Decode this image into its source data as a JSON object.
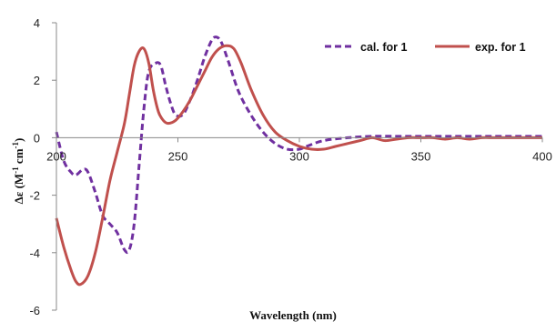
{
  "chart_data": {
    "type": "line",
    "title": "",
    "xlabel": "Wavelength (nm)",
    "ylabel": {
      "main": "Δε (M",
      "sup1": "-1",
      "mid": " cm",
      "sup2": "-1",
      "end": ")"
    },
    "xlim": [
      200,
      400
    ],
    "ylim": [
      -6,
      4
    ],
    "x_ticks": [
      200,
      250,
      300,
      350,
      400
    ],
    "y_ticks": [
      4,
      2,
      0,
      -2,
      -4,
      -6
    ],
    "grid": false,
    "legend_position": "top-right",
    "series": [
      {
        "name": "cal. for 1",
        "color": "#7030a0",
        "style": "dashed",
        "points": [
          [
            200,
            0.2
          ],
          [
            203,
            -0.8
          ],
          [
            206,
            -1.2
          ],
          [
            208,
            -1.3
          ],
          [
            211,
            -1.1
          ],
          [
            213,
            -1.2
          ],
          [
            216,
            -1.9
          ],
          [
            219,
            -2.7
          ],
          [
            222,
            -3.0
          ],
          [
            225,
            -3.3
          ],
          [
            228,
            -3.9
          ],
          [
            230,
            -3.9
          ],
          [
            232,
            -3.0
          ],
          [
            234,
            -1.0
          ],
          [
            236,
            1.0
          ],
          [
            238,
            2.3
          ],
          [
            241,
            2.6
          ],
          [
            243,
            2.5
          ],
          [
            245,
            1.8
          ],
          [
            247,
            1.2
          ],
          [
            249,
            0.8
          ],
          [
            252,
            0.8
          ],
          [
            255,
            1.3
          ],
          [
            258,
            2.0
          ],
          [
            261,
            2.8
          ],
          [
            264,
            3.4
          ],
          [
            266,
            3.5
          ],
          [
            268,
            3.3
          ],
          [
            271,
            2.6
          ],
          [
            275,
            1.6
          ],
          [
            280,
            0.8
          ],
          [
            285,
            0.2
          ],
          [
            290,
            -0.2
          ],
          [
            295,
            -0.4
          ],
          [
            300,
            -0.4
          ],
          [
            303,
            -0.3
          ],
          [
            310,
            -0.1
          ],
          [
            320,
            0.0
          ],
          [
            330,
            0.05
          ],
          [
            340,
            0.05
          ],
          [
            350,
            0.05
          ],
          [
            360,
            0.05
          ],
          [
            370,
            0.05
          ],
          [
            380,
            0.05
          ],
          [
            390,
            0.05
          ],
          [
            400,
            0.05
          ]
        ]
      },
      {
        "name": "exp. for 1",
        "color": "#c0504d",
        "style": "solid",
        "points": [
          [
            200,
            -2.8
          ],
          [
            203,
            -3.8
          ],
          [
            206,
            -4.6
          ],
          [
            208,
            -5.0
          ],
          [
            210,
            -5.1
          ],
          [
            213,
            -4.8
          ],
          [
            216,
            -4.0
          ],
          [
            219,
            -2.8
          ],
          [
            222,
            -1.5
          ],
          [
            225,
            -0.5
          ],
          [
            228,
            0.5
          ],
          [
            230,
            1.5
          ],
          [
            232,
            2.5
          ],
          [
            234,
            3.0
          ],
          [
            236,
            3.1
          ],
          [
            238,
            2.6
          ],
          [
            240,
            1.6
          ],
          [
            242,
            0.9
          ],
          [
            244,
            0.6
          ],
          [
            246,
            0.5
          ],
          [
            249,
            0.6
          ],
          [
            252,
            0.9
          ],
          [
            255,
            1.3
          ],
          [
            258,
            1.8
          ],
          [
            261,
            2.3
          ],
          [
            264,
            2.8
          ],
          [
            267,
            3.1
          ],
          [
            270,
            3.2
          ],
          [
            273,
            3.1
          ],
          [
            276,
            2.6
          ],
          [
            280,
            1.7
          ],
          [
            285,
            0.8
          ],
          [
            290,
            0.2
          ],
          [
            295,
            -0.1
          ],
          [
            300,
            -0.3
          ],
          [
            305,
            -0.4
          ],
          [
            310,
            -0.4
          ],
          [
            315,
            -0.3
          ],
          [
            320,
            -0.2
          ],
          [
            325,
            -0.1
          ],
          [
            330,
            0.0
          ],
          [
            335,
            -0.1
          ],
          [
            340,
            -0.05
          ],
          [
            345,
            0.0
          ],
          [
            350,
            0.0
          ],
          [
            355,
            0.0
          ],
          [
            360,
            -0.05
          ],
          [
            365,
            0.0
          ],
          [
            370,
            -0.05
          ],
          [
            375,
            0.0
          ],
          [
            380,
            0.0
          ],
          [
            385,
            0.0
          ],
          [
            390,
            0.0
          ],
          [
            395,
            0.0
          ],
          [
            400,
            0.0
          ]
        ]
      }
    ]
  }
}
